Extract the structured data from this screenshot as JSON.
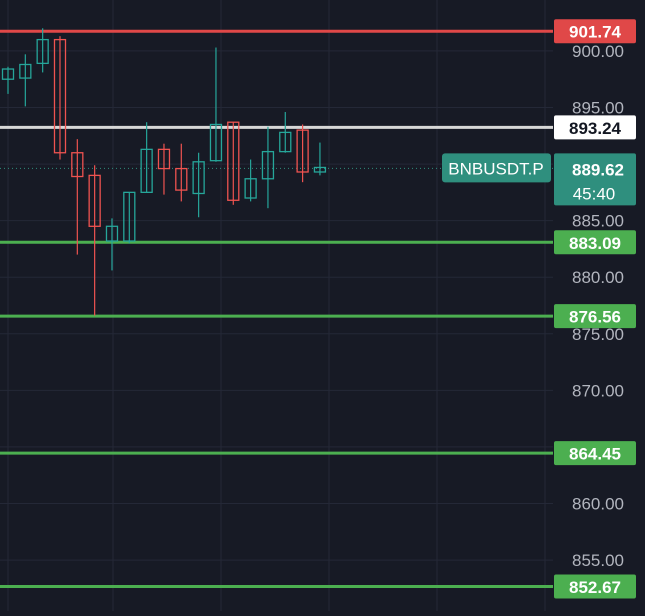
{
  "symbol": "BNBUSDT.P",
  "countdown": "45:40",
  "colors": {
    "background": "#171a25",
    "grid": "#242837",
    "up": "#26a69a",
    "down": "#ef5350",
    "support": "#4caf50",
    "resistance": "#e04848",
    "white_line": "#d7d7d7",
    "current": "#2f8f7e",
    "axis_text": "#b2b5be"
  },
  "chart_data": {
    "type": "candlestick",
    "ylim": [
      850.5,
      904.5
    ],
    "y_ticks": [
      "855.00",
      "860.00",
      "870.00",
      "875.00",
      "880.00",
      "885.00",
      "895.00",
      "900.00"
    ],
    "current_price": {
      "value": 889.62,
      "label": "889.62"
    },
    "horizontal_levels": [
      {
        "value": 901.74,
        "label": "901.74",
        "kind": "resistance"
      },
      {
        "value": 893.24,
        "label": "893.24",
        "kind": "white"
      },
      {
        "value": 883.09,
        "label": "883.09",
        "kind": "support"
      },
      {
        "value": 876.56,
        "label": "876.56",
        "kind": "support"
      },
      {
        "value": 864.45,
        "label": "864.45",
        "kind": "support"
      },
      {
        "value": 852.67,
        "label": "852.67",
        "kind": "support"
      }
    ],
    "candles": [
      {
        "o": 897.5,
        "h": 898.6,
        "l": 896.2,
        "c": 898.4
      },
      {
        "o": 897.6,
        "h": 899.7,
        "l": 895.1,
        "c": 898.8
      },
      {
        "o": 898.9,
        "h": 902.0,
        "l": 898.1,
        "c": 901.0
      },
      {
        "o": 901.0,
        "h": 901.3,
        "l": 890.4,
        "c": 891.0
      },
      {
        "o": 891.0,
        "h": 892.2,
        "l": 882.0,
        "c": 888.9
      },
      {
        "o": 889.0,
        "h": 889.9,
        "l": 876.6,
        "c": 884.5
      },
      {
        "o": 883.2,
        "h": 885.2,
        "l": 880.6,
        "c": 884.5
      },
      {
        "o": 883.2,
        "h": 887.5,
        "l": 883.0,
        "c": 887.5
      },
      {
        "o": 887.5,
        "h": 893.7,
        "l": 887.5,
        "c": 891.3
      },
      {
        "o": 891.3,
        "h": 891.8,
        "l": 887.3,
        "c": 889.6
      },
      {
        "o": 889.6,
        "h": 891.8,
        "l": 886.7,
        "c": 887.7
      },
      {
        "o": 887.4,
        "h": 891.0,
        "l": 885.3,
        "c": 890.2
      },
      {
        "o": 890.3,
        "h": 900.3,
        "l": 890.2,
        "c": 893.5
      },
      {
        "o": 893.7,
        "h": 893.7,
        "l": 886.4,
        "c": 886.8
      },
      {
        "o": 887.0,
        "h": 890.4,
        "l": 886.7,
        "c": 888.7
      },
      {
        "o": 888.7,
        "h": 893.3,
        "l": 886.1,
        "c": 891.1
      },
      {
        "o": 891.1,
        "h": 894.6,
        "l": 891.0,
        "c": 892.8
      },
      {
        "o": 893.0,
        "h": 893.5,
        "l": 888.4,
        "c": 889.3
      },
      {
        "o": 889.3,
        "h": 891.9,
        "l": 889.0,
        "c": 889.7
      }
    ]
  }
}
